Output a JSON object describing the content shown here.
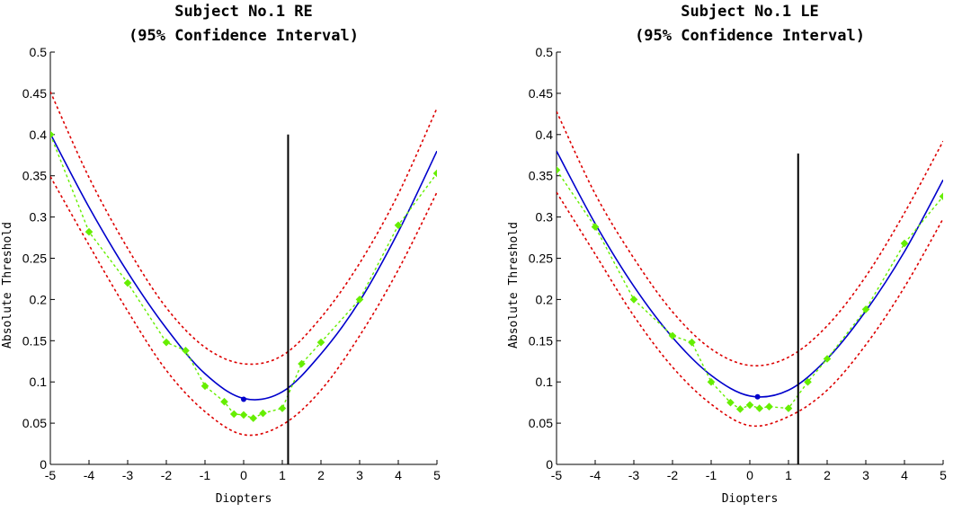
{
  "chart_data": [
    {
      "type": "line",
      "title": [
        "Subject No.1 RE",
        "(95% Confidence Interval)"
      ],
      "xlabel": "Diopters",
      "ylabel": "Absolute Threshold",
      "xlim": [
        -5,
        5
      ],
      "ylim": [
        0,
        0.5
      ],
      "xticks": [
        -5,
        -4,
        -3,
        -2,
        -1,
        0,
        1,
        2,
        3,
        4,
        5
      ],
      "yticks": [
        0,
        0.05,
        0.1,
        0.15,
        0.2,
        0.25,
        0.3,
        0.35,
        0.4,
        0.45,
        0.5
      ],
      "grid": false,
      "fit": {
        "color": "#0000cc",
        "x": [
          -5,
          -4,
          -3,
          -2,
          -1,
          0,
          1,
          2,
          3,
          4,
          5
        ],
        "y": [
          0.401,
          0.312,
          0.233,
          0.165,
          0.11,
          0.08,
          0.088,
          0.134,
          0.198,
          0.282,
          0.38
        ]
      },
      "ci_upper": {
        "color": "#dd0000",
        "x": [
          -5,
          -4,
          -3,
          -2,
          -1,
          0,
          1,
          2,
          3,
          4,
          5
        ],
        "y": [
          0.452,
          0.348,
          0.262,
          0.19,
          0.142,
          0.122,
          0.132,
          0.178,
          0.244,
          0.328,
          0.432
        ]
      },
      "ci_lower": {
        "color": "#dd0000",
        "x": [
          -5,
          -4,
          -3,
          -2,
          -1,
          0,
          1,
          2,
          3,
          4,
          5
        ],
        "y": [
          0.349,
          0.266,
          0.186,
          0.114,
          0.064,
          0.036,
          0.048,
          0.09,
          0.156,
          0.236,
          0.33
        ]
      },
      "data": {
        "color": "#66ee00",
        "x": [
          -5,
          -4,
          -3,
          -2,
          -1.5,
          -1,
          -0.5,
          -0.25,
          0,
          0.25,
          0.5,
          1,
          1.5,
          2,
          3,
          4,
          5
        ],
        "y": [
          0.4,
          0.282,
          0.22,
          0.148,
          0.138,
          0.095,
          0.076,
          0.061,
          0.06,
          0.056,
          0.062,
          0.068,
          0.122,
          0.148,
          0.2,
          0.29,
          0.353
        ]
      },
      "minimum": {
        "x": 0,
        "y": 0.079
      },
      "vline": {
        "x": 1.15,
        "y": [
          0,
          0.4
        ]
      }
    },
    {
      "type": "line",
      "title": [
        "Subject No.1 LE",
        "(95% Confidence Interval)"
      ],
      "xlabel": "Diopters",
      "ylabel": "Absolute Threshold",
      "xlim": [
        -5,
        5
      ],
      "ylim": [
        0,
        0.5
      ],
      "xticks": [
        -5,
        -4,
        -3,
        -2,
        -1,
        0,
        1,
        2,
        3,
        4,
        5
      ],
      "yticks": [
        0,
        0.05,
        0.1,
        0.15,
        0.2,
        0.25,
        0.3,
        0.35,
        0.4,
        0.45,
        0.5
      ],
      "grid": false,
      "fit": {
        "color": "#0000cc",
        "x": [
          -5,
          -4,
          -3,
          -2,
          -1,
          0,
          1,
          2,
          3,
          4,
          5
        ],
        "y": [
          0.38,
          0.292,
          0.216,
          0.154,
          0.108,
          0.083,
          0.09,
          0.128,
          0.186,
          0.258,
          0.345
        ]
      },
      "ci_upper": {
        "color": "#dd0000",
        "x": [
          -5,
          -4,
          -3,
          -2,
          -1,
          0,
          1,
          2,
          3,
          4,
          5
        ],
        "y": [
          0.428,
          0.328,
          0.25,
          0.185,
          0.14,
          0.12,
          0.13,
          0.168,
          0.228,
          0.305,
          0.392
        ]
      },
      "ci_lower": {
        "color": "#dd0000",
        "x": [
          -5,
          -4,
          -3,
          -2,
          -1,
          0,
          1,
          2,
          3,
          4,
          5
        ],
        "y": [
          0.33,
          0.255,
          0.18,
          0.118,
          0.073,
          0.047,
          0.058,
          0.09,
          0.145,
          0.215,
          0.298
        ]
      },
      "data": {
        "color": "#66ee00",
        "x": [
          -5,
          -4,
          -3,
          -2,
          -1.5,
          -1,
          -0.5,
          -0.25,
          0,
          0.25,
          0.5,
          1,
          1.5,
          2,
          3,
          4,
          5
        ],
        "y": [
          0.357,
          0.288,
          0.2,
          0.156,
          0.148,
          0.1,
          0.075,
          0.067,
          0.072,
          0.068,
          0.07,
          0.068,
          0.1,
          0.128,
          0.188,
          0.268,
          0.325
        ]
      },
      "minimum": {
        "x": 0.2,
        "y": 0.082
      },
      "vline": {
        "x": 1.25,
        "y": [
          0,
          0.377
        ]
      }
    }
  ]
}
